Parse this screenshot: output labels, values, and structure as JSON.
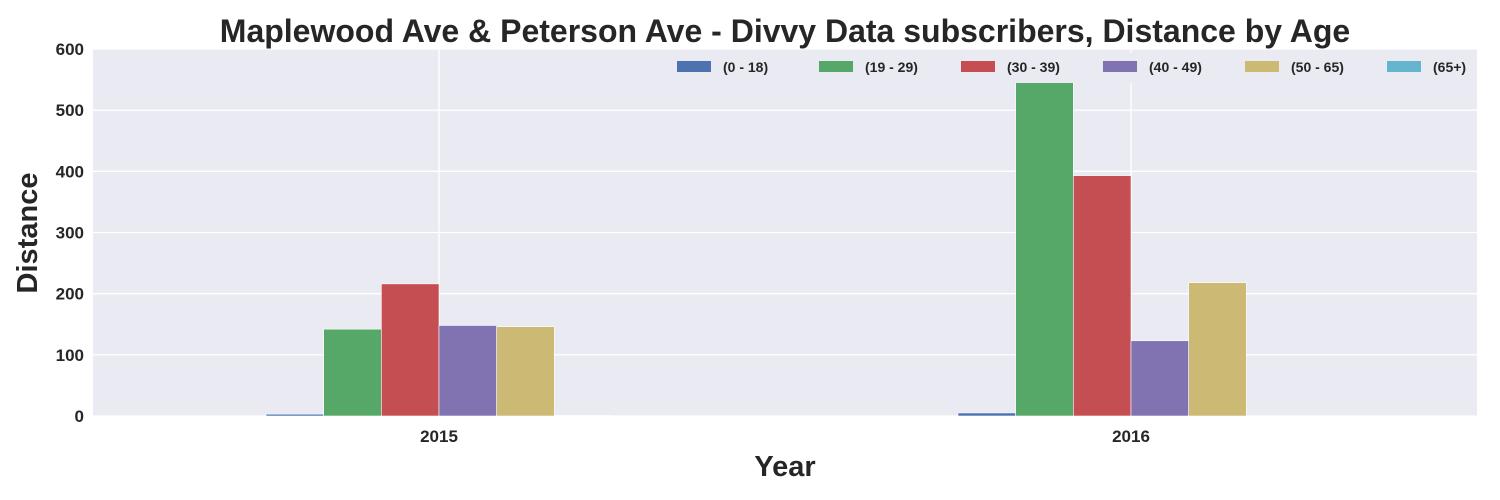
{
  "chart_data": {
    "type": "bar",
    "title": "Maplewood Ave & Peterson Ave - Divvy Data subscribers, Distance by Age",
    "xlabel": "Year",
    "ylabel": "Distance",
    "categories": [
      "2015",
      "2016"
    ],
    "series": [
      {
        "name": "(0 - 18)",
        "color": "#4c72b0",
        "values": [
          3,
          5
        ]
      },
      {
        "name": "(19 - 29)",
        "color": "#55a868",
        "values": [
          142,
          548
        ]
      },
      {
        "name": "(30 - 39)",
        "color": "#c44e52",
        "values": [
          216,
          393
        ]
      },
      {
        "name": "(40 - 49)",
        "color": "#8172b2",
        "values": [
          148,
          123
        ]
      },
      {
        "name": "(50 - 65)",
        "color": "#ccb974",
        "values": [
          146,
          218
        ]
      },
      {
        "name": "(65+)",
        "color": "#64b5cd",
        "values": [
          1,
          0
        ]
      }
    ],
    "ylim": [
      0,
      600
    ],
    "yticks": [
      0,
      100,
      200,
      300,
      400,
      500,
      600
    ],
    "grid": true,
    "legend_position": "top-right",
    "legend_columns": 6,
    "plot_background": "#eaeaf2",
    "grid_color": "#ffffff"
  }
}
